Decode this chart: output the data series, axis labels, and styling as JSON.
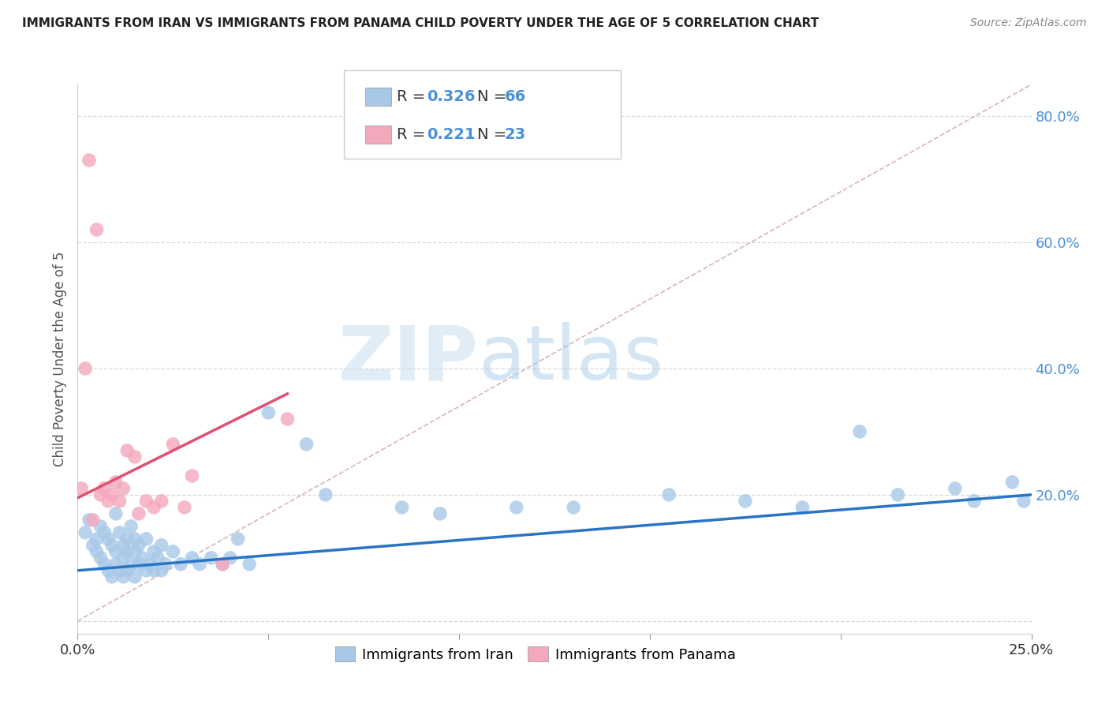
{
  "title": "IMMIGRANTS FROM IRAN VS IMMIGRANTS FROM PANAMA CHILD POVERTY UNDER THE AGE OF 5 CORRELATION CHART",
  "source": "Source: ZipAtlas.com",
  "ylabel": "Child Poverty Under the Age of 5",
  "xlim": [
    0.0,
    0.25
  ],
  "ylim": [
    -0.02,
    0.85
  ],
  "iran_R": 0.326,
  "iran_N": 66,
  "panama_R": 0.221,
  "panama_N": 23,
  "iran_color": "#a8c8e8",
  "panama_color": "#f4a8bc",
  "iran_line_color": "#2874c5",
  "panama_line_color": "#e05070",
  "diagonal_color": "#d0a0a8",
  "watermark_zip": "ZIP",
  "watermark_atlas": "atlas",
  "iran_scatter_x": [
    0.002,
    0.003,
    0.004,
    0.005,
    0.005,
    0.006,
    0.006,
    0.007,
    0.007,
    0.008,
    0.008,
    0.009,
    0.009,
    0.01,
    0.01,
    0.01,
    0.011,
    0.011,
    0.012,
    0.012,
    0.012,
    0.013,
    0.013,
    0.013,
    0.014,
    0.014,
    0.015,
    0.015,
    0.015,
    0.016,
    0.016,
    0.017,
    0.018,
    0.018,
    0.019,
    0.02,
    0.02,
    0.021,
    0.022,
    0.022,
    0.023,
    0.025,
    0.027,
    0.03,
    0.032,
    0.035,
    0.038,
    0.04,
    0.042,
    0.045,
    0.05,
    0.06,
    0.065,
    0.085,
    0.095,
    0.115,
    0.13,
    0.155,
    0.175,
    0.19,
    0.205,
    0.215,
    0.23,
    0.235,
    0.245,
    0.248
  ],
  "iran_scatter_y": [
    0.14,
    0.16,
    0.12,
    0.13,
    0.11,
    0.15,
    0.1,
    0.14,
    0.09,
    0.13,
    0.08,
    0.12,
    0.07,
    0.17,
    0.11,
    0.09,
    0.14,
    0.08,
    0.12,
    0.1,
    0.07,
    0.13,
    0.11,
    0.08,
    0.15,
    0.09,
    0.13,
    0.11,
    0.07,
    0.12,
    0.09,
    0.1,
    0.13,
    0.08,
    0.09,
    0.11,
    0.08,
    0.1,
    0.12,
    0.08,
    0.09,
    0.11,
    0.09,
    0.1,
    0.09,
    0.1,
    0.09,
    0.1,
    0.13,
    0.09,
    0.33,
    0.28,
    0.2,
    0.18,
    0.17,
    0.18,
    0.18,
    0.2,
    0.19,
    0.18,
    0.3,
    0.2,
    0.21,
    0.19,
    0.22,
    0.19
  ],
  "panama_scatter_x": [
    0.001,
    0.002,
    0.003,
    0.004,
    0.005,
    0.006,
    0.007,
    0.008,
    0.009,
    0.01,
    0.011,
    0.012,
    0.013,
    0.015,
    0.016,
    0.018,
    0.02,
    0.022,
    0.025,
    0.028,
    0.03,
    0.038,
    0.055
  ],
  "panama_scatter_y": [
    0.21,
    0.4,
    0.73,
    0.16,
    0.62,
    0.2,
    0.21,
    0.19,
    0.2,
    0.22,
    0.19,
    0.21,
    0.27,
    0.26,
    0.17,
    0.19,
    0.18,
    0.19,
    0.28,
    0.18,
    0.23,
    0.09,
    0.32
  ],
  "iran_line_x": [
    0.0,
    0.25
  ],
  "iran_line_y": [
    0.08,
    0.2
  ],
  "panama_line_x": [
    0.0,
    0.055
  ],
  "panama_line_y": [
    0.195,
    0.36
  ],
  "background_color": "#ffffff",
  "grid_color": "#d8d8d8",
  "tick_color": "#4a90d9",
  "legend_box_color": "#f0f0f0"
}
